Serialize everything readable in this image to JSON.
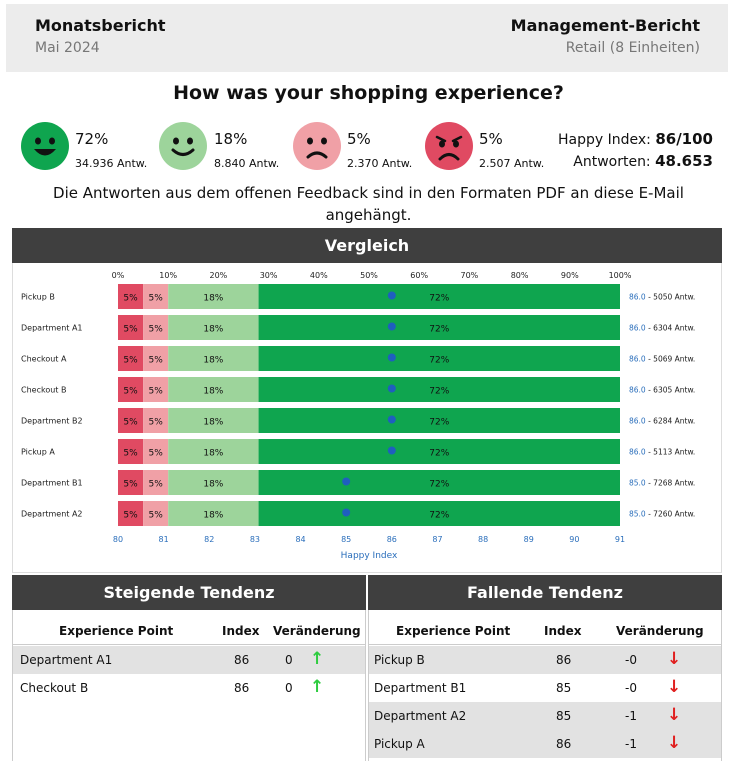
{
  "header": {
    "left_title": "Monatsbericht",
    "left_sub": "Mai 2024",
    "right_title": "Management-Bericht",
    "right_sub": "Retail (8 Einheiten)"
  },
  "question": "How was your shopping experience?",
  "sentiments": [
    {
      "pct": "72%",
      "count": "34.936 Antw.",
      "icon": "very-happy-face-icon",
      "color": "#0fa54f"
    },
    {
      "pct": "18%",
      "count": "8.840 Antw.",
      "icon": "happy-face-icon",
      "color": "#9dd49b"
    },
    {
      "pct": "5%",
      "count": "2.370 Antw.",
      "icon": "sad-face-icon",
      "color": "#f0a0a6"
    },
    {
      "pct": "5%",
      "count": "2.507 Antw.",
      "icon": "very-sad-face-icon",
      "color": "#e04a62"
    }
  ],
  "summary": {
    "happy_index_label": "Happy Index:",
    "happy_index_value": "86/100",
    "answers_label": "Antworten:",
    "answers_value": "48.653"
  },
  "note": "Die Antworten aus dem offenen Feedback sind in den Formaten PDF an diese E-Mail angehängt.",
  "comparison_title": "Vergleich",
  "chart_data": {
    "type": "bar",
    "orientation": "horizontal-stacked",
    "top_axis_ticks": [
      "0%",
      "10%",
      "20%",
      "30%",
      "40%",
      "50%",
      "60%",
      "70%",
      "80%",
      "90%",
      "100%"
    ],
    "bottom_axis_ticks": [
      "80",
      "81",
      "82",
      "83",
      "84",
      "85",
      "86",
      "87",
      "88",
      "89",
      "90",
      "91"
    ],
    "bottom_axis_range": [
      80,
      91
    ],
    "xlabel": "Happy Index",
    "segment_colors": [
      "#e04a62",
      "#f0a0a6",
      "#9dd49b",
      "#0fa54f"
    ],
    "marker_color": "#1f5fbf",
    "categories": [
      "Pickup B",
      "Department A1",
      "Checkout A",
      "Checkout B",
      "Department B2",
      "Pickup A",
      "Department B1",
      "Department A2"
    ],
    "series": [
      {
        "values": [
          5,
          5,
          5,
          5,
          5,
          5,
          5,
          5
        ]
      },
      {
        "values": [
          5,
          5,
          5,
          5,
          5,
          5,
          5,
          5
        ]
      },
      {
        "values": [
          18,
          18,
          18,
          18,
          18,
          18,
          18,
          18
        ]
      },
      {
        "values": [
          72,
          72,
          72,
          72,
          72,
          72,
          72,
          72
        ]
      }
    ],
    "index_values": [
      86.0,
      86.0,
      86.0,
      86.0,
      86.0,
      86.0,
      85.0,
      85.0
    ],
    "index_labels": [
      "86.0",
      "86.0",
      "86.0",
      "86.0",
      "86.0",
      "86.0",
      "85.0",
      "85.0"
    ],
    "answer_labels": [
      "- 5050 Antw.",
      "- 6304 Antw.",
      "- 5069 Antw.",
      "- 6305 Antw.",
      "- 6284 Antw.",
      "- 5113 Antw.",
      "- 7268 Antw.",
      "- 7260 Antw."
    ]
  },
  "rising": {
    "title": "Steigende Tendenz",
    "headers": [
      "Experience Point",
      "Index",
      "Veränderung"
    ],
    "rows": [
      {
        "name": "Department A1",
        "index": "86",
        "change": "0",
        "arrow": "↑"
      },
      {
        "name": "Checkout B",
        "index": "86",
        "change": "0",
        "arrow": "↑"
      }
    ]
  },
  "falling": {
    "title": "Fallende Tendenz",
    "headers": [
      "Experience Point",
      "Index",
      "Veränderung"
    ],
    "rows": [
      {
        "name": "Pickup B",
        "index": "86",
        "change": "-0",
        "arrow": "↓"
      },
      {
        "name": "Department B1",
        "index": "85",
        "change": "-0",
        "arrow": "↓"
      },
      {
        "name": "Department A2",
        "index": "85",
        "change": "-1",
        "arrow": "↓"
      },
      {
        "name": "Pickup A",
        "index": "86",
        "change": "-1",
        "arrow": "↓"
      }
    ]
  }
}
